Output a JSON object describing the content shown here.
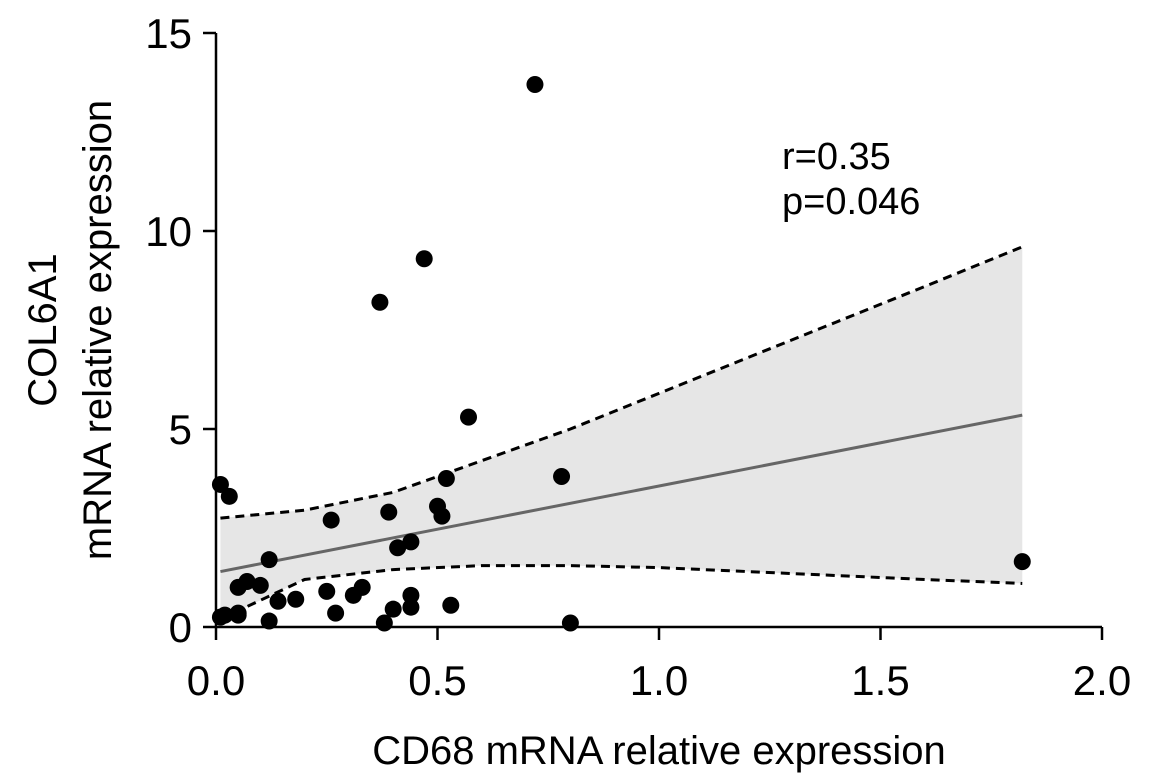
{
  "chart_data": {
    "type": "scatter",
    "xlabel": "CD68 mRNA relative expression",
    "ylabel_lines": [
      "COL6A1",
      "mRNA relative expression"
    ],
    "xlim": [
      0,
      2.0
    ],
    "ylim": [
      0,
      15
    ],
    "x_ticks": [
      0.0,
      0.5,
      1.0,
      1.5,
      2.0
    ],
    "x_tick_labels": [
      "0.0",
      "0.5",
      "1.0",
      "1.5",
      "2.0"
    ],
    "y_ticks": [
      0,
      5,
      10,
      15
    ],
    "y_tick_labels": [
      "0",
      "5",
      "10",
      "15"
    ],
    "grid": false,
    "annotations": [
      "r=0.35",
      "p=0.046"
    ],
    "points": [
      {
        "x": 0.01,
        "y": 3.6
      },
      {
        "x": 0.03,
        "y": 3.3
      },
      {
        "x": 0.01,
        "y": 0.25
      },
      {
        "x": 0.02,
        "y": 0.3
      },
      {
        "x": 0.05,
        "y": 0.3
      },
      {
        "x": 0.05,
        "y": 0.35
      },
      {
        "x": 0.05,
        "y": 1.0
      },
      {
        "x": 0.07,
        "y": 1.15
      },
      {
        "x": 0.1,
        "y": 1.05
      },
      {
        "x": 0.12,
        "y": 1.7
      },
      {
        "x": 0.12,
        "y": 0.15
      },
      {
        "x": 0.14,
        "y": 0.65
      },
      {
        "x": 0.18,
        "y": 0.7
      },
      {
        "x": 0.25,
        "y": 0.9
      },
      {
        "x": 0.26,
        "y": 2.7
      },
      {
        "x": 0.27,
        "y": 0.35
      },
      {
        "x": 0.31,
        "y": 0.8
      },
      {
        "x": 0.33,
        "y": 1.0
      },
      {
        "x": 0.37,
        "y": 8.2
      },
      {
        "x": 0.38,
        "y": 0.1
      },
      {
        "x": 0.39,
        "y": 2.9
      },
      {
        "x": 0.4,
        "y": 0.45
      },
      {
        "x": 0.41,
        "y": 2.0
      },
      {
        "x": 0.44,
        "y": 2.15
      },
      {
        "x": 0.44,
        "y": 0.5
      },
      {
        "x": 0.44,
        "y": 0.8
      },
      {
        "x": 0.47,
        "y": 9.3
      },
      {
        "x": 0.5,
        "y": 3.05
      },
      {
        "x": 0.51,
        "y": 2.8
      },
      {
        "x": 0.52,
        "y": 3.75
      },
      {
        "x": 0.53,
        "y": 0.55
      },
      {
        "x": 0.57,
        "y": 5.3
      },
      {
        "x": 0.72,
        "y": 13.7
      },
      {
        "x": 0.78,
        "y": 3.8
      },
      {
        "x": 0.8,
        "y": 0.1
      },
      {
        "x": 1.82,
        "y": 1.65
      }
    ],
    "regression": {
      "x": [
        0.01,
        1.82
      ],
      "y": [
        1.4,
        5.35
      ]
    },
    "ci_x": [
      0.01,
      0.2,
      0.4,
      0.6,
      0.8,
      1.0,
      1.2,
      1.4,
      1.6,
      1.82
    ],
    "ci_upper": [
      2.75,
      2.95,
      3.4,
      4.2,
      5.0,
      5.9,
      6.8,
      7.7,
      8.6,
      9.6
    ],
    "ci_lower": [
      0.2,
      1.2,
      1.45,
      1.55,
      1.55,
      1.5,
      1.4,
      1.3,
      1.2,
      1.1
    ],
    "colors": {
      "points": "#000000",
      "regression": "#666666",
      "band": "#e6e6e6",
      "ci_line": "#000000"
    }
  }
}
